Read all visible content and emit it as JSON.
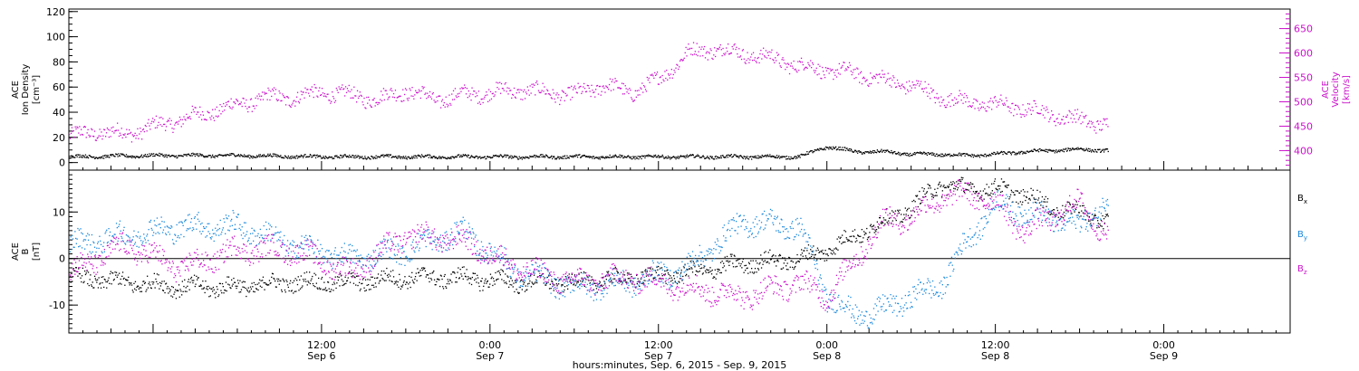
{
  "colors": {
    "black": "#000000",
    "magenta": "#cc11cc",
    "blue": "#1a88dd"
  },
  "chart_data": {
    "type": "scatter",
    "xlabel": "hours:minutes, Sep.  6, 2015 - Sep.  9, 2015",
    "x_unit": "hours since Sep 5 18:00",
    "xlim": [
      0,
      87
    ],
    "x_ticks": [
      {
        "x": 18,
        "time": "12:00",
        "date": "Sep 6"
      },
      {
        "x": 30,
        "time": "0:00",
        "date": "Sep 7"
      },
      {
        "x": 42,
        "time": "12:00",
        "date": "Sep 7"
      },
      {
        "x": 54,
        "time": "0:00",
        "date": "Sep 8"
      },
      {
        "x": 66,
        "time": "12:00",
        "date": "Sep 8"
      },
      {
        "x": 78,
        "time": "0:00",
        "date": "Sep 9"
      }
    ],
    "panels": [
      {
        "name": "top",
        "ylabel_left": [
          "ACE",
          "Ion Density",
          "[cm⁻³]"
        ],
        "ylabel_right": [
          "ACE",
          "Velocity",
          "[km/s]"
        ],
        "ylim_left": [
          -6,
          122
        ],
        "ylim_right": [
          360,
          690
        ],
        "left_ticks": [
          "0",
          "20",
          "40",
          "60",
          "80",
          "100",
          "120"
        ],
        "right_ticks": [
          "400",
          "450",
          "500",
          "550",
          "600",
          "650"
        ],
        "series": [
          {
            "axis": "left",
            "color": "#000000",
            "x": [
              0,
              6,
              12,
              18,
              24,
              30,
              36,
              42,
              48,
              52,
              54,
              56,
              58,
              60,
              62,
              64,
              66,
              68,
              70,
              72,
              74
            ],
            "y": [
              5,
              6,
              6,
              5,
              5,
              5,
              5,
              5,
              5,
              5,
              13,
              9,
              9,
              7,
              7,
              6,
              7,
              9,
              10,
              11,
              10
            ]
          },
          {
            "axis": "right",
            "color": "#cc11cc",
            "x": [
              0,
              2,
              4,
              6,
              8,
              10,
              12,
              14,
              16,
              18,
              20,
              22,
              24,
              26,
              28,
              30,
              32,
              34,
              36,
              38,
              40,
              42,
              44,
              46,
              48,
              50,
              52,
              54,
              56,
              58,
              60,
              62,
              64,
              66,
              68,
              70,
              72,
              74
            ],
            "y": [
              430,
              440,
              435,
              450,
              465,
              480,
              495,
              510,
              510,
              520,
              515,
              505,
              525,
              505,
              515,
              520,
              525,
              520,
              515,
              535,
              520,
              545,
              600,
              610,
              600,
              590,
              575,
              565,
              560,
              545,
              535,
              510,
              500,
              495,
              488,
              475,
              463,
              455
            ]
          }
        ]
      },
      {
        "name": "bottom",
        "ylabel_left": [
          "ACE",
          "B",
          "[nT]"
        ],
        "ylim": [
          -16,
          19
        ],
        "ticks": [
          "-10",
          "0",
          "10"
        ],
        "legend": [
          "B",
          "B",
          "B"
        ],
        "legend_sub": [
          "x",
          "y",
          "z"
        ],
        "series": [
          {
            "name": "Bx",
            "color": "#000000",
            "x": [
              0,
              4,
              8,
              12,
              16,
              20,
              24,
              28,
              32,
              36,
              40,
              44,
              48,
              52,
              54,
              56,
              58,
              60,
              62,
              64,
              66,
              68,
              70,
              72,
              74
            ],
            "y": [
              -4,
              -5,
              -6,
              -6,
              -5,
              -5,
              -4,
              -4,
              -5,
              -5,
              -4,
              -3,
              -1,
              0,
              2,
              5,
              8,
              11,
              16,
              15,
              15,
              14,
              11,
              10,
              8
            ]
          },
          {
            "name": "By",
            "color": "#1a88dd",
            "x": [
              0,
              4,
              8,
              12,
              16,
              20,
              24,
              28,
              32,
              36,
              40,
              44,
              48,
              52,
              54,
              56,
              58,
              60,
              62,
              64,
              66,
              68,
              70,
              72,
              74
            ],
            "y": [
              3,
              5,
              7,
              7,
              3,
              0,
              2,
              6,
              -3,
              -6,
              -5,
              -2,
              8,
              7,
              -8,
              -12,
              -11,
              -8,
              -6,
              4,
              12,
              10,
              9,
              7,
              13
            ]
          },
          {
            "name": "Bz",
            "color": "#cc11cc",
            "x": [
              0,
              4,
              8,
              12,
              16,
              20,
              24,
              28,
              32,
              36,
              40,
              44,
              48,
              52,
              54,
              56,
              58,
              60,
              62,
              64,
              66,
              68,
              70,
              72,
              74
            ],
            "y": [
              -3,
              3,
              -2,
              2,
              2,
              -3,
              5,
              4,
              -2,
              -5,
              -4,
              -6,
              -8,
              -5,
              -8,
              0,
              8,
              9,
              13,
              14,
              12,
              6,
              9,
              12,
              5
            ]
          }
        ]
      }
    ]
  }
}
